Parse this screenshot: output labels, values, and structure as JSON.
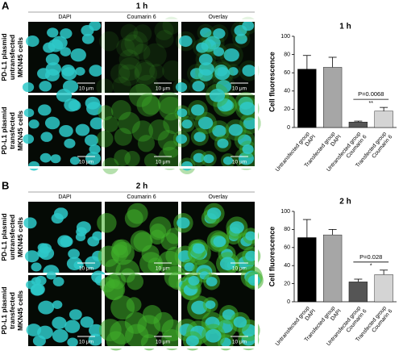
{
  "panels": [
    {
      "label": "A",
      "title": "1 h",
      "columns": [
        "DAPI",
        "Coumarin 6",
        "Overlay"
      ],
      "rows": [
        [
          "PD-L1 plasmid",
          "untransfected",
          "MKN45 cells"
        ],
        [
          "PD-L1 plasmid",
          "transfected",
          "MKN45 cells"
        ]
      ],
      "scale_bar": "10 μm"
    },
    {
      "label": "B",
      "title": "2 h",
      "columns": [
        "DAPI",
        "Coumarin 6",
        "Overlay"
      ],
      "rows": [
        [
          "PD-L1 plasmid",
          "untransfected",
          "MKN45 cells"
        ],
        [
          "PD-L1 plasmid",
          "transfected",
          "MKN45 cells"
        ]
      ],
      "scale_bar": "10 μm"
    }
  ],
  "chart_data": [
    {
      "type": "bar",
      "title": "1 h",
      "y_label": "Cell fluorescence",
      "categories": [
        "Untransfected group DAPI",
        "Transfected group DAPI",
        "Untransfected group Coumarin 6",
        "Transfected group Coumarin 6"
      ],
      "values": [
        64,
        66,
        6,
        18
      ],
      "errors": [
        15,
        11,
        1,
        4
      ],
      "colors": [
        "#000000",
        "#a6a6a6",
        "#555555",
        "#d4d4d4"
      ],
      "ylim": [
        0,
        100
      ],
      "yticks": [
        0,
        20,
        40,
        60,
        80,
        100
      ],
      "annotation": "P=0.0068",
      "significance": "**"
    },
    {
      "type": "bar",
      "title": "2 h",
      "y_label": "Cell fluorescence",
      "categories": [
        "Untransfected group DAPI",
        "Transfected group DAPI",
        "Untransfected group Coumarin 6",
        "Transfected group Coumarin 6"
      ],
      "values": [
        71,
        74,
        22,
        30
      ],
      "errors": [
        20,
        6,
        3,
        5
      ],
      "colors": [
        "#000000",
        "#a6a6a6",
        "#555555",
        "#d4d4d4"
      ],
      "ylim": [
        0,
        100
      ],
      "yticks": [
        0,
        20,
        40,
        60,
        80,
        100
      ],
      "annotation": "P=0.028",
      "significance": "*"
    }
  ]
}
